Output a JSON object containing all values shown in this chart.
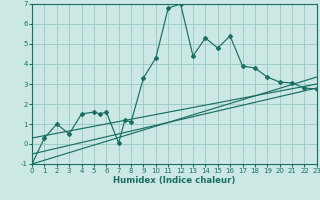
{
  "xlabel": "Humidex (Indice chaleur)",
  "bg_color": "#cce8e4",
  "line_color": "#1a6e63",
  "grid_color": "#9eccc6",
  "x_min": 0,
  "x_max": 23,
  "y_min": -1,
  "y_max": 7,
  "main_line_x": [
    0,
    1,
    2,
    3,
    4,
    5,
    5.5,
    6,
    7,
    7.5,
    8,
    9,
    10,
    11,
    12,
    13,
    14,
    15,
    16,
    17,
    18,
    19,
    20,
    21,
    22,
    23
  ],
  "main_line_y": [
    -1,
    0.3,
    1.0,
    0.5,
    1.5,
    1.6,
    1.5,
    1.6,
    0.05,
    1.2,
    1.1,
    3.3,
    4.3,
    6.8,
    7.0,
    4.4,
    5.3,
    4.8,
    5.4,
    3.9,
    3.8,
    3.35,
    3.1,
    3.05,
    2.8,
    2.75
  ],
  "straight_lines": [
    {
      "x": [
        0,
        23
      ],
      "y": [
        -1.0,
        3.35
      ]
    },
    {
      "x": [
        0,
        23
      ],
      "y": [
        -0.5,
        2.8
      ]
    },
    {
      "x": [
        0,
        23
      ],
      "y": [
        0.3,
        3.0
      ]
    }
  ],
  "xticks": [
    0,
    1,
    2,
    3,
    4,
    5,
    6,
    7,
    8,
    9,
    10,
    11,
    12,
    13,
    14,
    15,
    16,
    17,
    18,
    19,
    20,
    21,
    22,
    23
  ],
  "yticks": [
    -1,
    0,
    1,
    2,
    3,
    4,
    5,
    6,
    7
  ]
}
